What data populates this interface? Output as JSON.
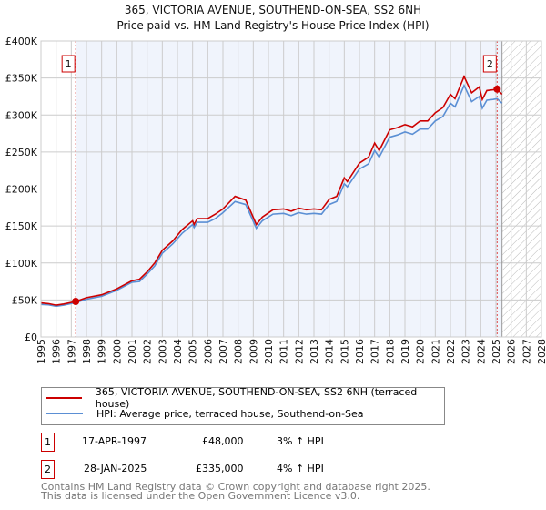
{
  "title_line1": "365, VICTORIA AVENUE, SOUTHEND-ON-SEA, SS2 6NH",
  "title_line2": "Price paid vs. HM Land Registry's House Price Index (HPI)",
  "colors": {
    "property": "#cc0000",
    "hpi": "#5b8fd4",
    "shade": "#f0f4fc",
    "grid": "#cccccc"
  },
  "chart_data": {
    "type": "line",
    "xlim": [
      1995,
      2028
    ],
    "ylim": [
      0,
      400000
    ],
    "x_ticks": [
      "1995",
      "1996",
      "1997",
      "1998",
      "1999",
      "2000",
      "2001",
      "2002",
      "2003",
      "2004",
      "2005",
      "2006",
      "2007",
      "2008",
      "2009",
      "2010",
      "2011",
      "2012",
      "2013",
      "2014",
      "2015",
      "2016",
      "2017",
      "2018",
      "2019",
      "2020",
      "2021",
      "2022",
      "2023",
      "2024",
      "2025",
      "2026",
      "2027",
      "2028"
    ],
    "y_ticks": [
      {
        "v": 0,
        "label": "£0"
      },
      {
        "v": 50000,
        "label": "£50K"
      },
      {
        "v": 100000,
        "label": "£100K"
      },
      {
        "v": 150000,
        "label": "£150K"
      },
      {
        "v": 200000,
        "label": "£200K"
      },
      {
        "v": 250000,
        "label": "£250K"
      },
      {
        "v": 300000,
        "label": "£300K"
      },
      {
        "v": 350000,
        "label": "£350K"
      },
      {
        "v": 400000,
        "label": "£400K"
      }
    ],
    "grid": true,
    "shaded_from": 1997.29,
    "data_end": 2025.4,
    "series": [
      {
        "name": "365, VICTORIA AVENUE, SOUTHEND-ON-SEA, SS2 6NH (terraced house)",
        "x": [
          1995,
          1995.5,
          1996,
          1996.5,
          1997.29,
          1998,
          1999,
          2000,
          2001,
          2001.5,
          2002,
          2002.5,
          2003,
          2003.7,
          2004.3,
          2005,
          2005.1,
          2005.3,
          2006,
          2006.5,
          2007,
          2007.8,
          2008.5,
          2009.2,
          2009.6,
          2010.3,
          2011,
          2011.5,
          2012,
          2012.5,
          2013,
          2013.5,
          2014,
          2014.5,
          2015,
          2015.2,
          2016,
          2016.6,
          2017,
          2017.3,
          2018,
          2018.5,
          2019,
          2019.5,
          2020,
          2020.5,
          2021,
          2021.5,
          2022,
          2022.3,
          2022.9,
          2023.4,
          2023.9,
          2024.1,
          2024.4,
          2024.8,
          2025.08,
          2025.4
        ],
        "y": [
          46000,
          45000,
          43000,
          44500,
          48000,
          53000,
          57000,
          65000,
          76000,
          78000,
          88000,
          100000,
          117000,
          130000,
          145000,
          157000,
          152000,
          160000,
          160000,
          166000,
          173000,
          190000,
          185000,
          152000,
          162000,
          172000,
          173000,
          170000,
          174000,
          172000,
          173000,
          172000,
          186000,
          190000,
          215000,
          210000,
          235000,
          243000,
          262000,
          252000,
          280000,
          283000,
          287000,
          284000,
          292000,
          292000,
          303000,
          310000,
          328000,
          322000,
          352000,
          330000,
          338000,
          321000,
          333000,
          334000,
          335000,
          328000
        ]
      },
      {
        "name": "HPI: Average price, terraced house, Southend-on-Sea",
        "x": [
          1995,
          1995.5,
          1996,
          1996.5,
          1997.29,
          1998,
          1999,
          2000,
          2001,
          2001.5,
          2002,
          2002.5,
          2003,
          2003.7,
          2004.3,
          2005,
          2005.1,
          2005.3,
          2006,
          2006.5,
          2007,
          2007.8,
          2008.5,
          2009.2,
          2009.6,
          2010.3,
          2011,
          2011.5,
          2012,
          2012.5,
          2013,
          2013.5,
          2014,
          2014.5,
          2015,
          2015.2,
          2016,
          2016.6,
          2017,
          2017.3,
          2018,
          2018.5,
          2019,
          2019.5,
          2020,
          2020.5,
          2021,
          2021.5,
          2022,
          2022.3,
          2022.9,
          2023.4,
          2023.9,
          2024.1,
          2024.4,
          2024.8,
          2025.08,
          2025.4
        ],
        "y": [
          44000,
          43500,
          41500,
          43000,
          46500,
          51000,
          55000,
          63000,
          74000,
          75000,
          85000,
          96000,
          113000,
          126000,
          140000,
          152000,
          148000,
          155000,
          155000,
          160000,
          168000,
          183000,
          179000,
          147000,
          157000,
          166000,
          167000,
          164000,
          168000,
          166000,
          167000,
          166000,
          179000,
          183000,
          207000,
          203000,
          227000,
          234000,
          252000,
          243000,
          270000,
          273000,
          277000,
          274000,
          281000,
          281000,
          292000,
          298000,
          316000,
          311000,
          340000,
          318000,
          325000,
          309000,
          320000,
          321000,
          322000,
          316000
        ]
      }
    ],
    "markers": [
      {
        "label": "1",
        "x": 1997.29,
        "y": 48000
      },
      {
        "label": "2",
        "x": 2025.08,
        "y": 335000
      }
    ]
  },
  "legend": {
    "property": "365, VICTORIA AVENUE, SOUTHEND-ON-SEA, SS2 6NH (terraced house)",
    "hpi": "HPI: Average price, terraced house, Southend-on-Sea"
  },
  "sales": [
    {
      "num": "1",
      "date": "17-APR-1997",
      "price": "£48,000",
      "hpi": "3% ↑ HPI"
    },
    {
      "num": "2",
      "date": "28-JAN-2025",
      "price": "£335,000",
      "hpi": "4% ↑ HPI"
    }
  ],
  "footer": {
    "line1": "Contains HM Land Registry data © Crown copyright and database right 2025.",
    "line2": "This data is licensed under the Open Government Licence v3.0."
  }
}
